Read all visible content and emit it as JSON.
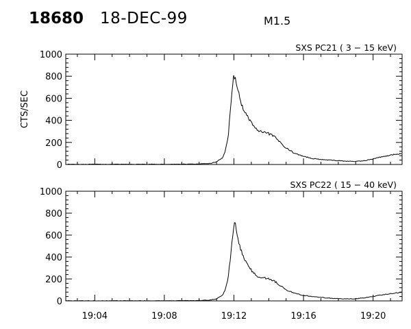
{
  "header": {
    "event_id": "18680",
    "date": "18-DEC-99",
    "flare_class": "M1.5"
  },
  "chart_data": [
    {
      "type": "line",
      "title": "SXS PC21  (  3 − 15 keV)",
      "ylabel": "CTS/SEC",
      "xlabel": "",
      "ylim": [
        0,
        1000
      ],
      "xlim": [
        "19:02:20",
        "19:21:40"
      ],
      "yticks": [
        "0",
        "200",
        "400",
        "600",
        "800",
        "1000"
      ],
      "xticks": [],
      "color": "#000000",
      "series": [
        {
          "x": [
            "19:02:20",
            "19:04:00",
            "19:06:00",
            "19:08:00",
            "19:10:00",
            "19:10:40",
            "19:11:00",
            "19:11:20",
            "19:11:30",
            "19:11:40",
            "19:11:50",
            "19:12:00",
            "19:12:05",
            "19:12:10",
            "19:12:20",
            "19:12:30",
            "19:12:40",
            "19:13:00",
            "19:13:20",
            "19:13:40",
            "19:14:00",
            "19:14:20",
            "19:14:40",
            "19:15:00",
            "19:15:30",
            "19:16:00",
            "19:16:30",
            "19:17:00",
            "19:17:30",
            "19:18:00",
            "19:18:30",
            "19:19:00",
            "19:19:30",
            "19:20:00",
            "19:20:30",
            "19:21:00",
            "19:21:40"
          ],
          "values": [
            2,
            2,
            2,
            2,
            4,
            10,
            25,
            60,
            120,
            250,
            550,
            810,
            790,
            720,
            600,
            520,
            460,
            380,
            310,
            290,
            280,
            250,
            200,
            150,
            100,
            75,
            55,
            45,
            40,
            35,
            30,
            28,
            35,
            50,
            70,
            85,
            100
          ]
        }
      ]
    },
    {
      "type": "line",
      "title": "SXS PC22  ( 15 − 40 keV)",
      "ylabel": "",
      "xlabel": "",
      "ylim": [
        0,
        1000
      ],
      "xlim": [
        "19:02:20",
        "19:21:40"
      ],
      "yticks": [
        "0",
        "200",
        "400",
        "600",
        "800",
        "1000"
      ],
      "xticks": [
        "19:04",
        "19:08",
        "19:12",
        "19:16",
        "19:20"
      ],
      "color": "#000000",
      "series": [
        {
          "x": [
            "19:02:20",
            "19:04:00",
            "19:06:00",
            "19:08:00",
            "19:10:00",
            "19:10:40",
            "19:11:00",
            "19:11:20",
            "19:11:30",
            "19:11:40",
            "19:11:50",
            "19:12:00",
            "19:12:05",
            "19:12:10",
            "19:12:20",
            "19:12:30",
            "19:12:40",
            "19:13:00",
            "19:13:20",
            "19:13:40",
            "19:14:00",
            "19:14:20",
            "19:14:40",
            "19:15:00",
            "19:15:30",
            "19:16:00",
            "19:16:30",
            "19:17:00",
            "19:17:30",
            "19:18:00",
            "19:18:30",
            "19:19:00",
            "19:19:30",
            "19:20:00",
            "19:20:30",
            "19:21:00",
            "19:21:40"
          ],
          "values": [
            1,
            1,
            1,
            1,
            3,
            8,
            20,
            50,
            100,
            200,
            450,
            710,
            690,
            620,
            500,
            420,
            360,
            280,
            220,
            215,
            200,
            180,
            140,
            100,
            70,
            50,
            40,
            32,
            25,
            20,
            18,
            20,
            28,
            40,
            55,
            65,
            80
          ]
        }
      ]
    }
  ]
}
